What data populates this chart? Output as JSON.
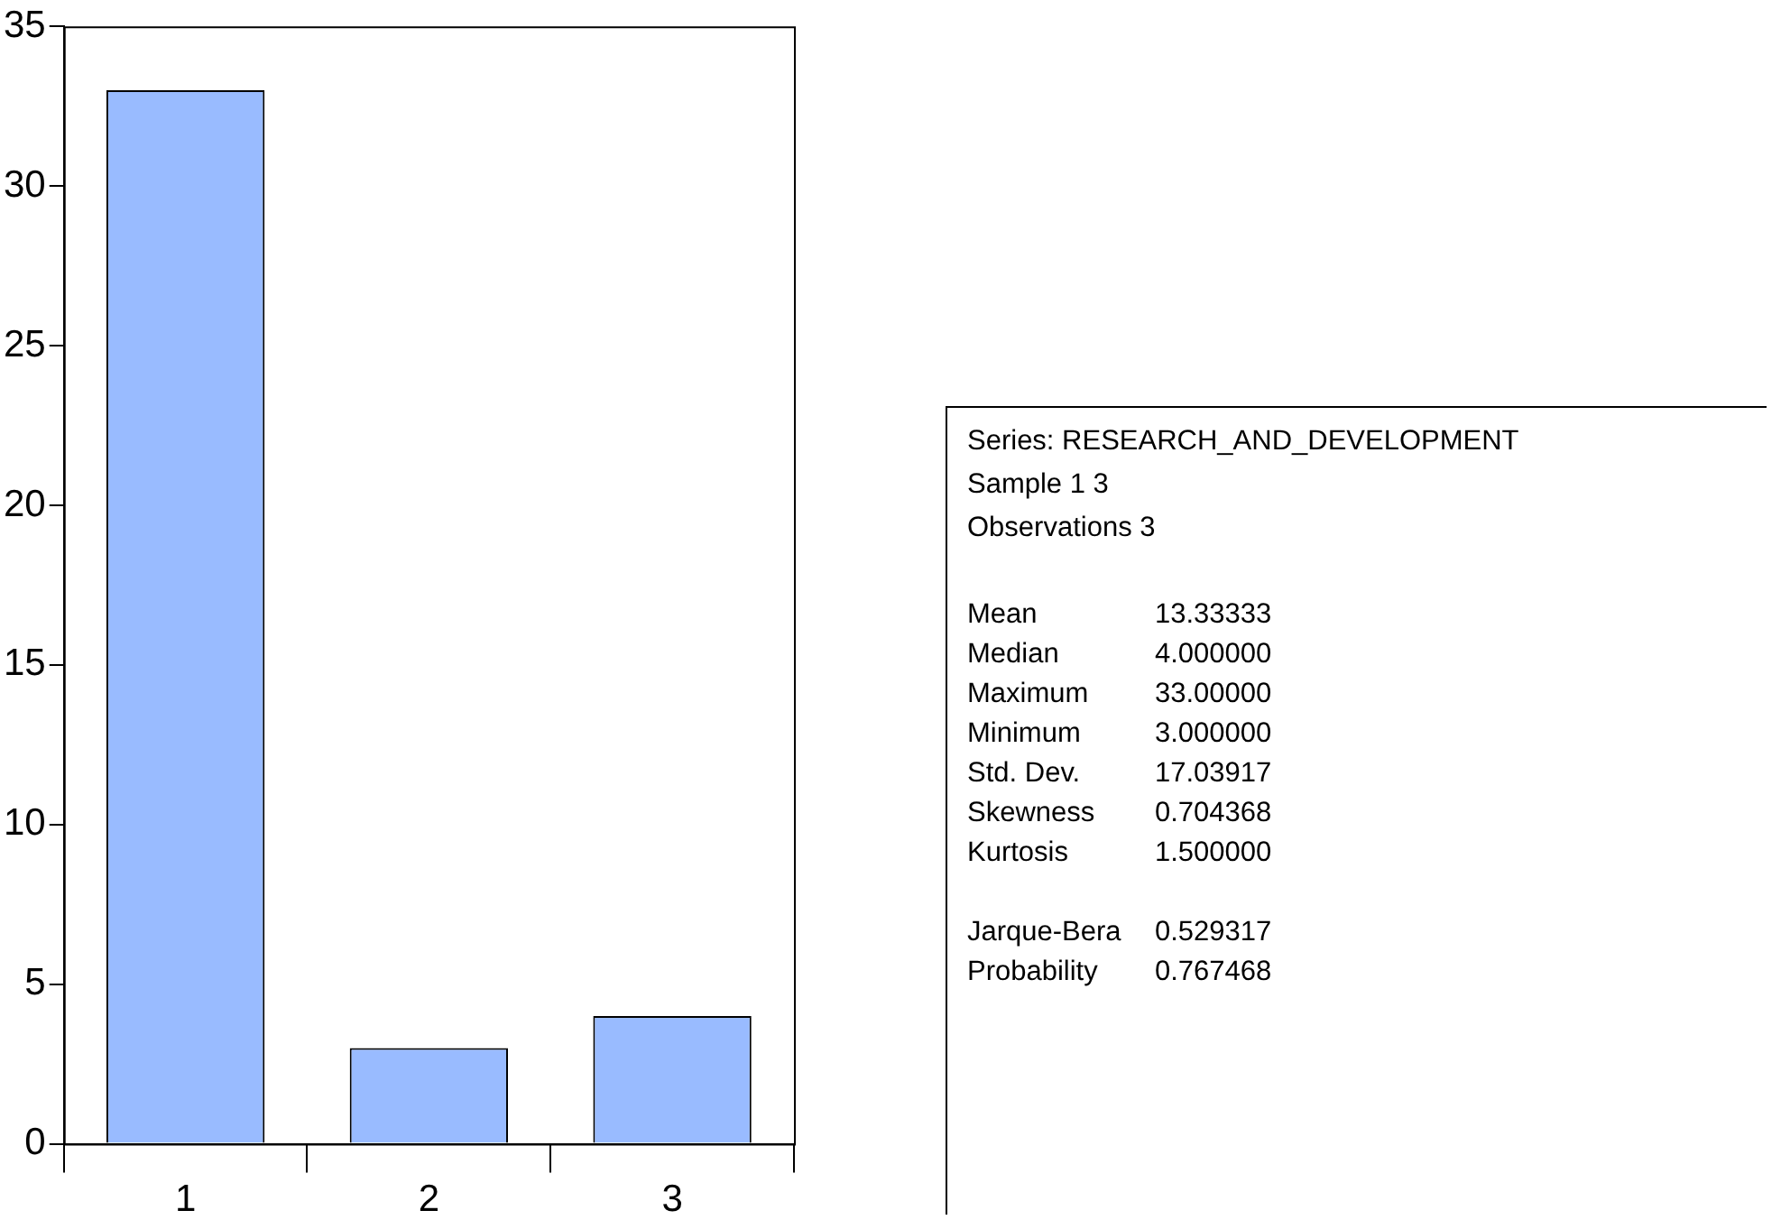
{
  "chart_data": [
    {
      "type": "bar",
      "categories": [
        "1",
        "2",
        "3"
      ],
      "values": [
        33,
        3,
        4
      ],
      "color": "#99bbff",
      "ylim": [
        0,
        35
      ],
      "yticks": [
        0,
        5,
        10,
        15,
        20,
        25,
        30,
        35
      ],
      "grid": false,
      "legend": false
    },
    {
      "type": "other",
      "annotations": [
        "Series: RESEARCH_AND_DEVELOPMENT",
        "Sample 1 3",
        "Observations 3",
        "Mean",
        "13.33333",
        "Median",
        "4.000000",
        "Maximum",
        "33.00000",
        "Minimum",
        "3.000000",
        "Std. Dev.",
        "17.03917",
        "Skewness",
        "0.704368",
        "Kurtosis",
        "1.500000",
        "Jarque-Bera",
        "0.529317",
        "Probability",
        "0.767468"
      ]
    }
  ]
}
